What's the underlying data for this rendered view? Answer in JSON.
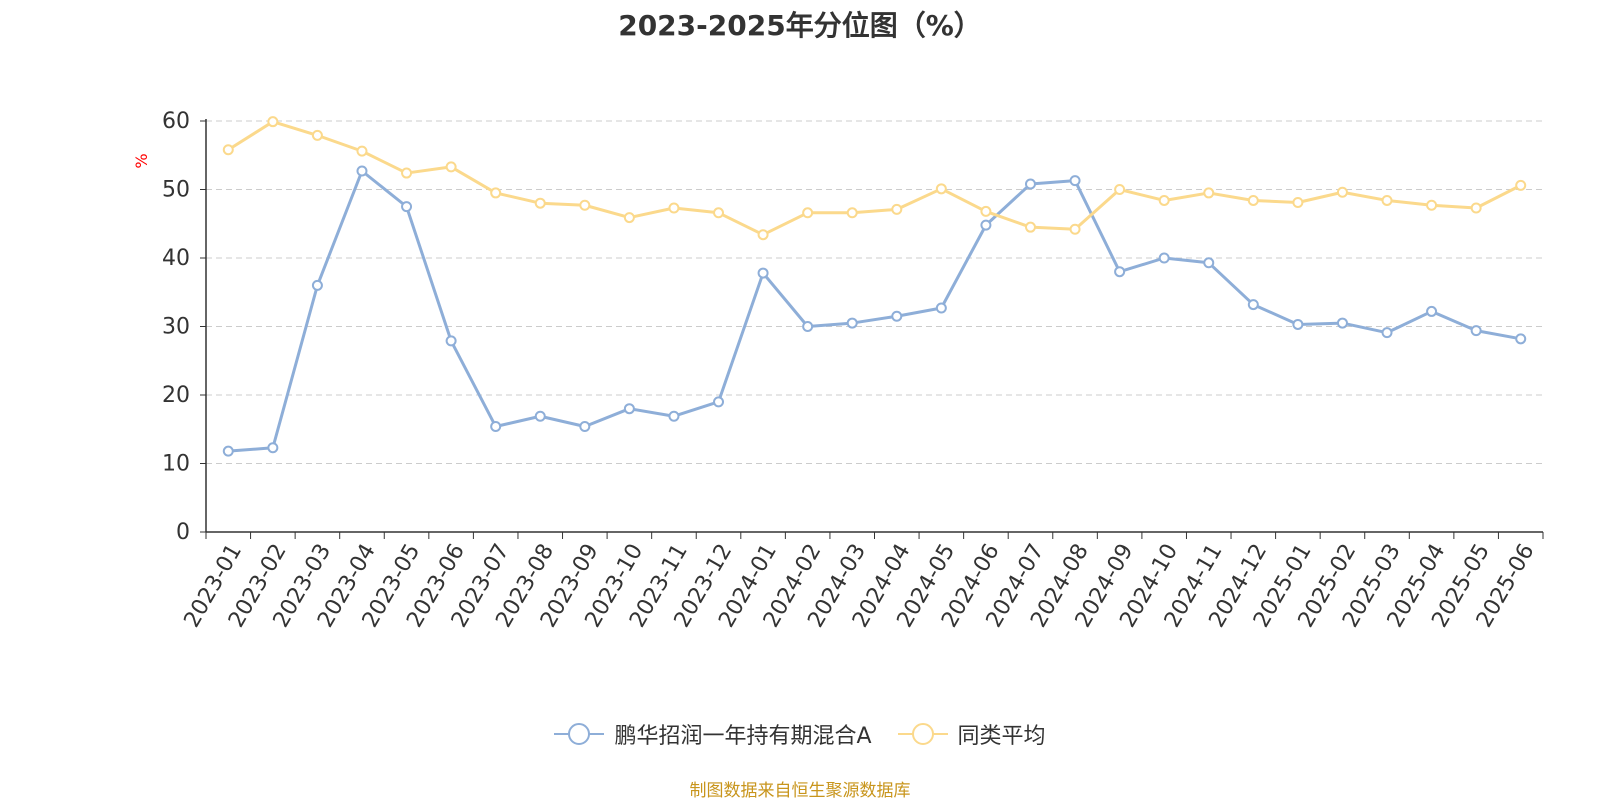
{
  "chart_data": {
    "type": "line",
    "title": "2023-2025年分位图（%）",
    "ylabel": "%",
    "ylim": [
      0,
      60
    ],
    "yticks": [
      0,
      10,
      20,
      30,
      40,
      50,
      60
    ],
    "grid": true,
    "legend_position": "bottom",
    "categories": [
      "2023-01",
      "2023-02",
      "2023-03",
      "2023-04",
      "2023-05",
      "2023-06",
      "2023-07",
      "2023-08",
      "2023-09",
      "2023-10",
      "2023-11",
      "2023-12",
      "2024-01",
      "2024-02",
      "2024-03",
      "2024-04",
      "2024-05",
      "2024-06",
      "2024-07",
      "2024-08",
      "2024-09",
      "2024-10",
      "2024-11",
      "2024-12",
      "2025-01",
      "2025-02",
      "2025-03",
      "2025-04",
      "2025-05",
      "2025-06"
    ],
    "series": [
      {
        "name": "鹏华招润一年持有期混合A",
        "color": "#8eaed8",
        "values": [
          11.8,
          12.3,
          36,
          52.7,
          47.5,
          27.9,
          15.4,
          16.9,
          15.4,
          18,
          16.9,
          19,
          37.8,
          30,
          30.5,
          31.5,
          32.7,
          44.8,
          50.8,
          51.3,
          38,
          40,
          39.3,
          33.2,
          30.3,
          30.5,
          29.1,
          32.2,
          29.4,
          28.2
        ]
      },
      {
        "name": "同类平均",
        "color": "#fbd98c",
        "values": [
          55.8,
          59.9,
          57.9,
          55.6,
          52.4,
          53.3,
          49.5,
          48,
          47.7,
          45.9,
          47.3,
          46.6,
          43.4,
          46.6,
          46.6,
          47.1,
          50.1,
          46.8,
          44.5,
          44.2,
          50,
          48.4,
          49.5,
          48.4,
          48.1,
          49.6,
          48.4,
          47.7,
          47.3,
          50.6
        ]
      }
    ]
  },
  "source_note": "制图数据来自恒生聚源数据库"
}
